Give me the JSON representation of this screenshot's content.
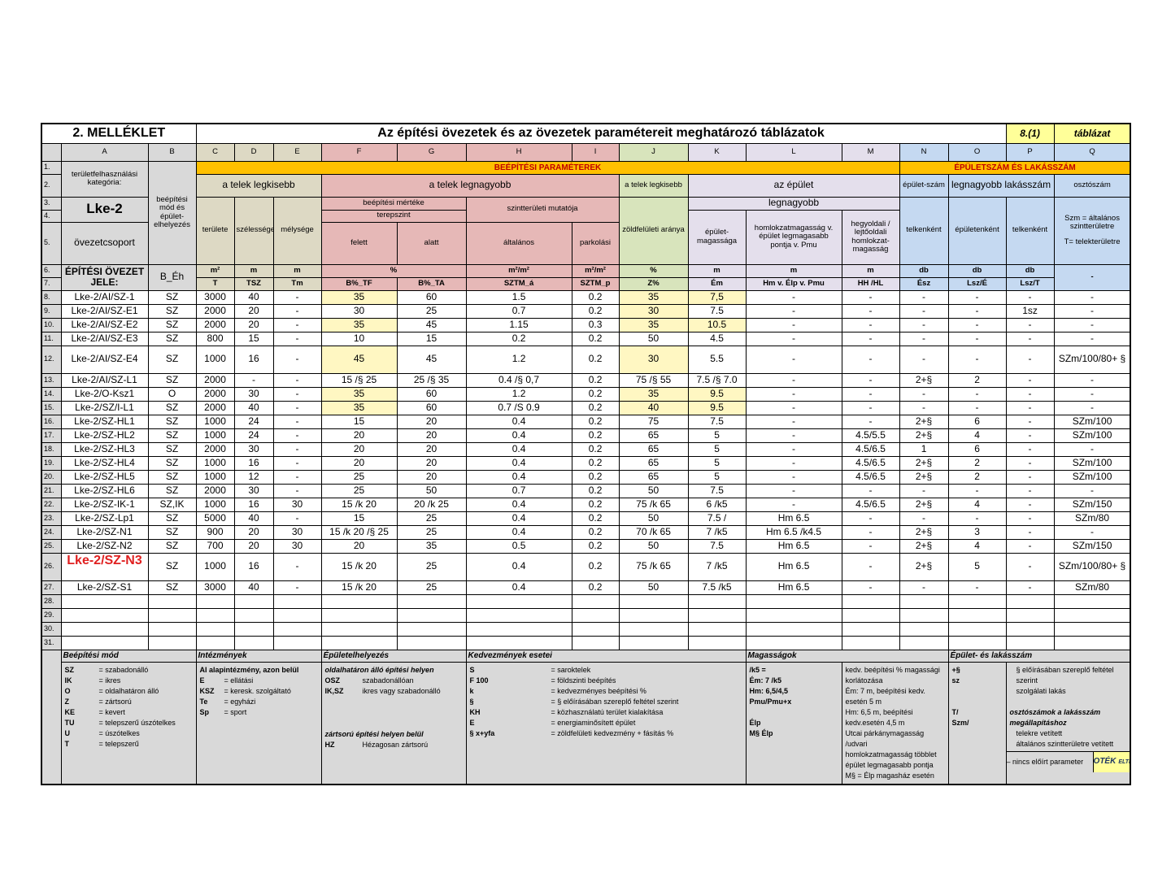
{
  "header": {
    "annex": "2. MELLÉKLET",
    "title": "Az építési övezetek és az övezetek paramétereit meghatározó táblázatok",
    "ref": "8.(1)",
    "ref_label": "táblázat"
  },
  "columns": [
    "A",
    "B",
    "C",
    "D",
    "E",
    "F",
    "G",
    "H",
    "I",
    "J",
    "K",
    "L",
    "M",
    "N",
    "O",
    "P",
    "Q"
  ],
  "row_numbers": [
    "1.",
    "2.",
    "3.",
    "4.",
    "5.",
    "6.",
    "7."
  ],
  "heads": {
    "category": "területfelhasználási kategória:",
    "category_value": "Lke-2",
    "group": "övezetcsoport",
    "zone_code": "ÉPÍTÉSI ÖVEZET JELE:",
    "mode": "beépítési mód és épület-elhelyezés",
    "mode_code": "B_Éh",
    "build_params": "BEÉPÍTÉSI PARAMÉTEREK",
    "counts": "ÉPÜLETSZÁM ÉS LAKÁSSZÁM",
    "lot_min": "a telek legkisebb",
    "lot_max": "a telek legnagyobb",
    "lot_min2": "a telek legkisebb",
    "building": "az épület",
    "bldg_count": "épület-szám",
    "max_units": "legnagyobb lakásszám",
    "divisor": "osztószám",
    "area": "területe",
    "width": "szélessége",
    "depth": "mélysége",
    "coverage": "beépítési mértéke",
    "terrain": "terepszint",
    "far": "szintterületi mutatója",
    "green": "zöldfelületi aránya",
    "largest": "legnagyobb",
    "height": "épület-magassága",
    "facade": "homlokzatmagasság v. épület legmagasabb pontja v. Pmu",
    "slope": "hegyoldali / lejtőoldali homlokzat-magasság",
    "per_lot": "telkenként",
    "per_bldg": "épületenként",
    "per_lot2": "telkenként",
    "divisor_desc": "Szm = általános szintterületre",
    "divisor_desc2": "T= telekterületre",
    "above": "felett",
    "below": "alatt",
    "general": "általános",
    "parking": "parkolási",
    "units": [
      "m²",
      "m",
      "m",
      "%",
      "m²/m²",
      "m²/m²",
      "%",
      "m",
      "m",
      "m",
      "db",
      "db",
      "db",
      "-"
    ],
    "codes": [
      "T",
      "TSZ",
      "Tm",
      "B%_TF",
      "B%_TA",
      "SZTM_á",
      "SZTM_p",
      "Z%",
      "Ém",
      "Hm v. Élp v. Pmu",
      "HH /HL",
      "Ész",
      "Lsz/É",
      "Lsz/T"
    ]
  },
  "rows": [
    {
      "n": "8.",
      "cells": [
        "Lke-2/AI/SZ-1",
        "SZ",
        "3000",
        "40",
        "-",
        "35",
        "60",
        "1.5",
        "0.2",
        "35",
        "7,5",
        "-",
        "-",
        "-",
        "-",
        "-",
        "-"
      ],
      "highlight": [
        "F",
        "J",
        "K"
      ]
    },
    {
      "n": "9.",
      "cells": [
        "Lke-2/AI/SZ-E1",
        "SZ",
        "2000",
        "20",
        "-",
        "30",
        "25",
        "0.7",
        "0.2",
        "30",
        "7.5",
        "-",
        "-",
        "-",
        "-",
        "1sz",
        "-"
      ],
      "highlight": [
        "J"
      ]
    },
    {
      "n": "10.",
      "cells": [
        "Lke-2/AI/SZ-E2",
        "SZ",
        "2000",
        "20",
        "-",
        "35",
        "45",
        "1.15",
        "0.3",
        "35",
        "10.5",
        "-",
        "-",
        "-",
        "-",
        "-",
        "-"
      ],
      "highlight": [
        "F",
        "J",
        "K"
      ]
    },
    {
      "n": "11.",
      "cells": [
        "Lke-2/AI/SZ-E3",
        "SZ",
        "800",
        "15",
        "-",
        "10",
        "15",
        "0.2",
        "0.2",
        "50",
        "4.5",
        "-",
        "-",
        "-",
        "-",
        "-",
        "-"
      ],
      "highlight": []
    },
    {
      "n": "12.",
      "cells": [
        "Lke-2/AI/SZ-E4",
        "SZ",
        "1000",
        "16",
        "-",
        "45",
        "45",
        "1.2",
        "0.2",
        "30",
        "5.5",
        "-",
        "-",
        "-",
        "-",
        "-",
        "SZm/100/80+ §"
      ],
      "highlight": [
        "F",
        "J"
      ],
      "tall": true
    },
    {
      "n": "13.",
      "cells": [
        "Lke-2/AI/SZ-L1",
        "SZ",
        "2000",
        "-",
        "-",
        "15 /§ 25",
        "25 /§ 35",
        "0.4 /§ 0,7",
        "0.2",
        "75 /§ 55",
        "7.5 /§ 7.0",
        "-",
        "-",
        "2+§",
        "2",
        "-",
        "-"
      ],
      "highlight": []
    },
    {
      "n": "14.",
      "cells": [
        "Lke-2/O-Ksz1",
        "O",
        "2000",
        "30",
        "-",
        "35",
        "60",
        "1.2",
        "0.2",
        "35",
        "9.5",
        "-",
        "-",
        "-",
        "-",
        "-",
        "-"
      ],
      "highlight": [
        "F",
        "J",
        "K"
      ]
    },
    {
      "n": "15.",
      "cells": [
        "Lke-2/SZ/I-L1",
        "SZ",
        "2000",
        "40",
        "-",
        "35",
        "60",
        "0.7 /S 0.9",
        "0.2",
        "40",
        "9.5",
        "-",
        "-",
        "-",
        "-",
        "-",
        "-"
      ],
      "highlight": [
        "F",
        "J",
        "K"
      ]
    },
    {
      "n": "16.",
      "cells": [
        "Lke-2/SZ-HL1",
        "SZ",
        "1000",
        "24",
        "-",
        "15",
        "20",
        "0.4",
        "0.2",
        "75",
        "7.5",
        "-",
        "-",
        "2+§",
        "6",
        "-",
        "SZm/100"
      ],
      "highlight": []
    },
    {
      "n": "17.",
      "cells": [
        "Lke-2/SZ-HL2",
        "SZ",
        "1000",
        "24",
        "-",
        "20",
        "20",
        "0.4",
        "0.2",
        "65",
        "5",
        "-",
        "4.5/5.5",
        "2+§",
        "4",
        "-",
        "SZm/100"
      ],
      "highlight": []
    },
    {
      "n": "18.",
      "cells": [
        "Lke-2/SZ-HL3",
        "SZ",
        "2000",
        "30",
        "-",
        "20",
        "20",
        "0.4",
        "0.2",
        "65",
        "5",
        "-",
        "4.5/6.5",
        "1",
        "6",
        "-",
        "-"
      ],
      "highlight": []
    },
    {
      "n": "19.",
      "cells": [
        "Lke-2/SZ-HL4",
        "SZ",
        "1000",
        "16",
        "-",
        "20",
        "20",
        "0.4",
        "0.2",
        "65",
        "5",
        "-",
        "4.5/6.5",
        "2+§",
        "2",
        "-",
        "SZm/100"
      ],
      "highlight": []
    },
    {
      "n": "20.",
      "cells": [
        "Lke-2/SZ-HL5",
        "SZ",
        "1000",
        "12",
        "-",
        "25",
        "20",
        "0.4",
        "0.2",
        "65",
        "5",
        "-",
        "4.5/6.5",
        "2+§",
        "2",
        "-",
        "SZm/100"
      ],
      "highlight": []
    },
    {
      "n": "21.",
      "cells": [
        "Lke-2/SZ-HL6",
        "SZ",
        "2000",
        "30",
        "-",
        "25",
        "50",
        "0.7",
        "0.2",
        "50",
        "7.5",
        "-",
        "-",
        "-",
        "-",
        "-",
        "-"
      ],
      "highlight": []
    },
    {
      "n": "22.",
      "cells": [
        "Lke-2/SZ-IK-1",
        "SZ,IK",
        "1000",
        "16",
        "30",
        "15 /k 20",
        "20 /k 25",
        "0.4",
        "0.2",
        "75 /k 65",
        "6 /k5",
        "-",
        "4.5/6.5",
        "2+§",
        "4",
        "-",
        "SZm/150"
      ],
      "highlight": []
    },
    {
      "n": "23.",
      "cells": [
        "Lke-2/SZ-Lp1",
        "SZ",
        "5000",
        "40",
        "-",
        "15",
        "25",
        "0.4",
        "0.2",
        "50",
        "7.5 /",
        "Hm 6.5",
        "-",
        "-",
        "-",
        "-",
        "SZm/80"
      ],
      "highlight": []
    },
    {
      "n": "24.",
      "cells": [
        "Lke-2/SZ-N1",
        "SZ",
        "900",
        "20",
        "30",
        "15 /k 20 /§ 25",
        "25",
        "0.4",
        "0.2",
        "70 /k 65",
        "7 /k5",
        "Hm 6.5 /k4.5",
        "-",
        "2+§",
        "3",
        "-",
        "-"
      ],
      "highlight": []
    },
    {
      "n": "25.",
      "cells": [
        "Lke-2/SZ-N2",
        "SZ",
        "700",
        "20",
        "30",
        "20",
        "35",
        "0.5",
        "0.2",
        "50",
        "7.5",
        "Hm 6.5",
        "-",
        "2+§",
        "4",
        "-",
        "SZm/150"
      ],
      "highlight": []
    },
    {
      "n": "26.",
      "cells": [
        "Lke-2/SZ-N3",
        "SZ",
        "1000",
        "16",
        "-",
        "15 /k 20",
        "25",
        "0.4",
        "0.2",
        "75 /k 65",
        "7 /k5",
        "Hm 6.5",
        "-",
        "2+§",
        "5",
        "-",
        "SZm/100/80+ §"
      ],
      "highlight": [],
      "tall": true,
      "red": true
    },
    {
      "n": "27.",
      "cells": [
        "Lke-2/SZ-S1",
        "SZ",
        "3000",
        "40",
        "-",
        "15 /k 20",
        "25",
        "0.4",
        "0.2",
        "50",
        "7.5 /k5",
        "Hm 6.5",
        "-",
        "-",
        "-",
        "-",
        "SZm/80"
      ],
      "highlight": []
    },
    {
      "n": "28.",
      "cells": [
        "",
        "",
        "",
        "",
        "",
        "",
        "",
        "",
        "",
        "",
        "",
        "",
        "",
        "",
        "",
        "",
        ""
      ],
      "highlight": []
    },
    {
      "n": "29.",
      "cells": [
        "",
        "",
        "",
        "",
        "",
        "",
        "",
        "",
        "",
        "",
        "",
        "",
        "",
        "",
        "",
        "",
        ""
      ],
      "highlight": []
    },
    {
      "n": "30.",
      "cells": [
        "",
        "",
        "",
        "",
        "",
        "",
        "",
        "",
        "",
        "",
        "",
        "",
        "",
        "",
        "",
        "",
        ""
      ],
      "highlight": []
    },
    {
      "n": "31.",
      "cells": [
        "",
        "",
        "",
        "",
        "",
        "",
        "",
        "",
        "",
        "",
        "",
        "",
        "",
        "",
        "",
        "",
        ""
      ],
      "highlight": []
    }
  ],
  "legend": {
    "mode": {
      "title": "Beépítési mód",
      "items": [
        [
          "SZ",
          "= szabadonálló"
        ],
        [
          "IK",
          "= ikres"
        ],
        [
          "O",
          "= oldalhatáron álló"
        ],
        [
          "Z",
          "= zártsorú"
        ],
        [
          "KE",
          "= kevert"
        ],
        [
          "TU",
          "= telepszerű úszótelkes"
        ],
        [
          "U",
          "= úszótelkes"
        ],
        [
          "T",
          "= telepszerű"
        ]
      ]
    },
    "inst": {
      "title": "Intézmények",
      "intro": "AI alapintézmény, azon belül",
      "items": [
        [
          "E",
          "= ellátási"
        ],
        [
          "KSZ",
          "= keresk. szolgáltató"
        ],
        [
          "Te",
          "= egyházi"
        ],
        [
          "Sp",
          "= sport"
        ]
      ]
    },
    "place": {
      "title": "Épületelhelyezés",
      "sub1": "oldalhatáron álló építési helyen",
      "items1": [
        [
          "OSZ",
          "szabadonállóan"
        ],
        [
          "IK,SZ",
          "ikres vagy szabadonálló"
        ]
      ],
      "sub2": "zártsorú építési helyen belül",
      "items2": [
        [
          "HZ",
          "Hézagosan zártsorú"
        ]
      ]
    },
    "bonus": {
      "title": "Kedvezmények esetei",
      "items": [
        [
          "S",
          "= saroktelek"
        ],
        [
          "F 100",
          "= földszinti beépítés"
        ],
        [
          "k",
          "= kedvezményes beépítési %"
        ],
        [
          "§",
          "= § előírásában szereplő feltétel szerint"
        ],
        [
          "KH",
          "= közhasználatú terület kialakítása"
        ],
        [
          "E",
          "= energiaminősített épület"
        ],
        [
          "§ x+yfa",
          "= zöldfelületi kedvezmény + fásítás %"
        ]
      ]
    },
    "heights": {
      "title": "Magasságok",
      "codes": [
        "/k5 =",
        "Ém: 7 /k5",
        "Hm: 6,5/4,5",
        "Pmu/Pmu+x",
        "",
        "Élp",
        "M§ Élp"
      ],
      "descs": [
        "kedv.  beépítési % magassági korlátozása",
        "Ém: 7 m, beépítési kedv. esetén 5 m",
        "Hm: 6,5 m, beépítési kedv.esetén  4,5 m",
        "Utcai párkánymagasság /udvari",
        "homlokzatmagasság többlet",
        "épület legmagasabb pontja",
        "M§ = Élp magasház esetén"
      ]
    },
    "counts": {
      "title": "Épület- és lakásszám",
      "codes": [
        "+§",
        "sz",
        "",
        "",
        "T/",
        "Szm/"
      ],
      "descs": [
        "§ előírásában szereplő feltétel szerint",
        "szolgálati lakás",
        "",
        "",
        "telekre vetített",
        "általános szintterületre vetített"
      ],
      "sub": "osztószámok a lakásszám megállapításhoz",
      "none": "– nincs előírt parameter",
      "oték": "OTÉK",
      "oték_note": "ELTÉRÉSSEL"
    }
  },
  "colors": {
    "tan": "#ddd9c4",
    "pink": "#e6b8b7",
    "green": "#d8e4bc",
    "lavender": "#e4dfec",
    "blue": "#c5d9f1",
    "orange": "#ffc000",
    "highlight": "#fff7c2",
    "red_text": "#e02020"
  }
}
